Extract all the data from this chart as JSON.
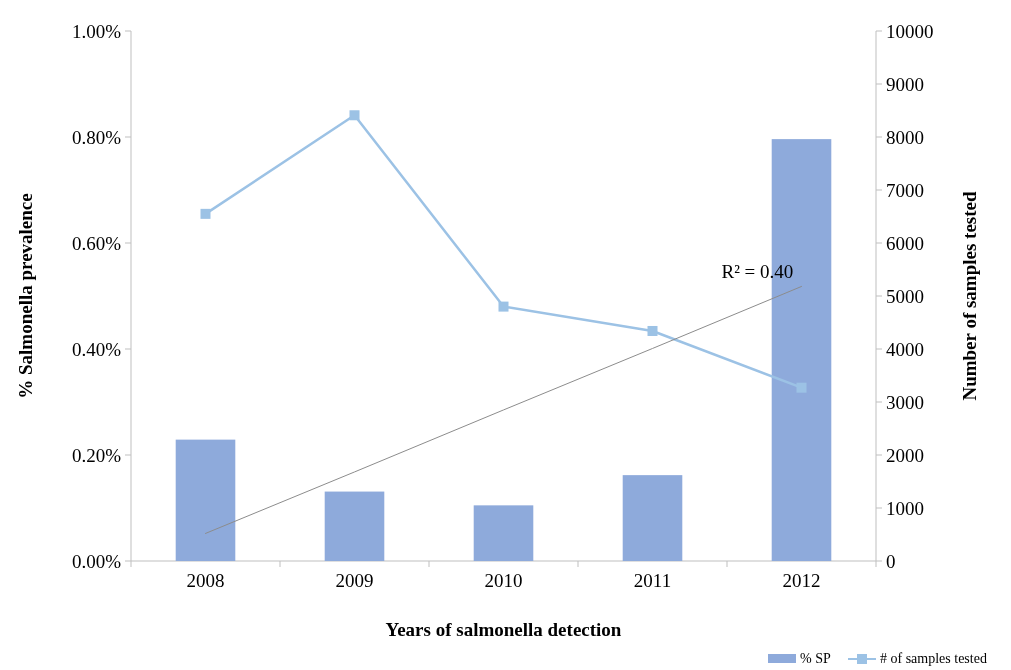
{
  "chart_data": {
    "type": "bar",
    "xlabel": "Years of salmonella detection",
    "ylabel": "% Salmonella prevalence",
    "y2label": "Number of samples tested",
    "categories": [
      "2008",
      "2009",
      "2010",
      "2011",
      "2012"
    ],
    "series": [
      {
        "name": "% SP",
        "color": "#8eaadb",
        "values": [
          0.229,
          0.131,
          0.105,
          0.162,
          0.796
        ]
      },
      {
        "name": "# of samples tested",
        "type": "line",
        "axis": "y2",
        "color": "#9cc2e5",
        "marker": "square",
        "values": [
          6550,
          8410,
          4800,
          4340,
          3270
        ]
      },
      {
        "type": "line",
        "color": "#8c8c8c",
        "marker": "none",
        "values": [
          0.052,
          0.168,
          0.285,
          0.401,
          0.518
        ]
      }
    ],
    "annotations": [
      "R² = 0.40"
    ],
    "ylim": [
      0,
      1
    ],
    "yticks": [
      {
        "value": 0,
        "label": "0.00%"
      },
      {
        "value": 0.2,
        "label": "0.20%"
      },
      {
        "value": 0.4,
        "label": "0.40%"
      },
      {
        "value": 0.6,
        "label": "0.60%"
      },
      {
        "value": 0.8,
        "label": "0.80%"
      },
      {
        "value": 1,
        "label": "1.00%"
      }
    ],
    "y2lim": [
      0,
      10000
    ],
    "y2ticks": [
      0,
      1000,
      2000,
      3000,
      4000,
      5000,
      6000,
      7000,
      8000,
      9000,
      10000
    ],
    "grid": false,
    "legend": "bottom right"
  }
}
